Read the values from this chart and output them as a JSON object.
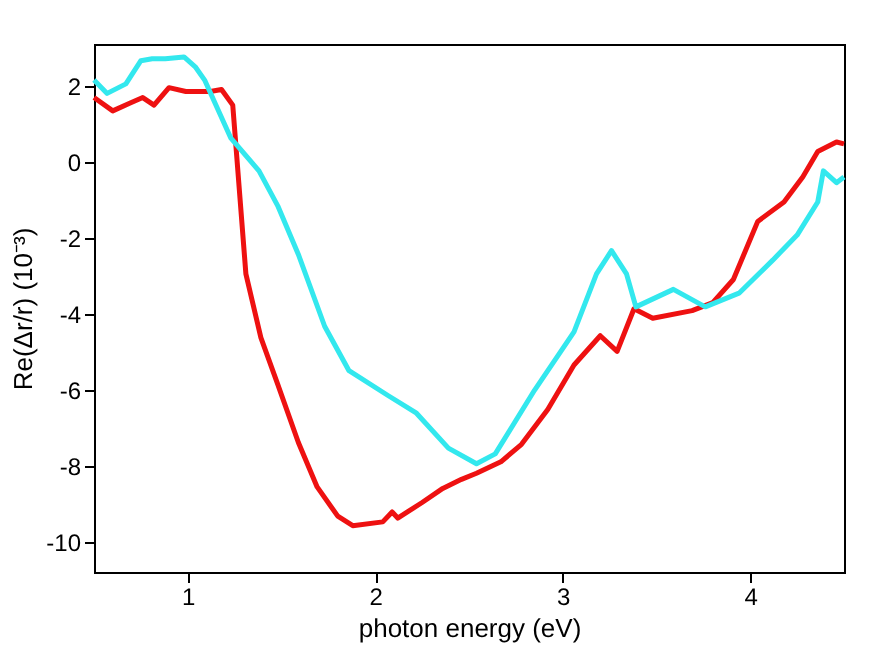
{
  "chart_data": {
    "type": "line",
    "xlabel": "photon energy (eV)",
    "ylabel": "Re(Δr/r) (10⁻³)",
    "xlim": [
      0.5,
      4.5
    ],
    "ylim": [
      -10.8,
      3.1
    ],
    "xticks": [
      1,
      2,
      3,
      4
    ],
    "yticks": [
      -10,
      -8,
      -6,
      -4,
      -2,
      0,
      2
    ],
    "grid": false,
    "marker": "none",
    "line_style": "solid",
    "series": [
      {
        "color": "#ee1111",
        "x": [
          0.5,
          0.6,
          0.69,
          0.76,
          0.82,
          0.9,
          0.99,
          1.12,
          1.18,
          1.24,
          1.31,
          1.39,
          1.48,
          1.59,
          1.69,
          1.8,
          1.88,
          2.04,
          2.09,
          2.12,
          2.25,
          2.36,
          2.46,
          2.54,
          2.67,
          2.78,
          2.92,
          3.06,
          3.2,
          3.29,
          3.38,
          3.48,
          3.69,
          3.8,
          3.91,
          4.04,
          4.18,
          4.28,
          4.36,
          4.46,
          4.5
        ],
        "values": [
          1.69,
          1.34,
          1.54,
          1.69,
          1.49,
          1.95,
          1.85,
          1.85,
          1.9,
          1.49,
          -2.95,
          -4.63,
          -5.86,
          -7.39,
          -8.56,
          -9.33,
          -9.58,
          -9.48,
          -9.22,
          -9.38,
          -8.97,
          -8.6,
          -8.36,
          -8.2,
          -7.9,
          -7.44,
          -6.52,
          -5.35,
          -4.58,
          -4.99,
          -3.87,
          -4.12,
          -3.92,
          -3.71,
          -3.1,
          -1.57,
          -1.06,
          -0.4,
          0.27,
          0.52,
          0.47
        ]
      },
      {
        "color": "#33e8ee",
        "x": [
          0.5,
          0.57,
          0.67,
          0.75,
          0.81,
          0.88,
          0.98,
          1.04,
          1.09,
          1.23,
          1.38,
          1.48,
          1.59,
          1.73,
          1.86,
          2.07,
          2.22,
          2.39,
          2.54,
          2.64,
          2.85,
          3.06,
          3.18,
          3.26,
          3.34,
          3.39,
          3.59,
          3.76,
          3.94,
          4.12,
          4.25,
          4.36,
          4.39,
          4.46,
          4.5
        ],
        "values": [
          2.15,
          1.8,
          2.05,
          2.66,
          2.71,
          2.71,
          2.76,
          2.5,
          2.15,
          0.62,
          -0.24,
          -1.16,
          -2.44,
          -4.33,
          -5.5,
          -6.16,
          -6.62,
          -7.54,
          -7.95,
          -7.69,
          -6.01,
          -4.48,
          -2.95,
          -2.34,
          -2.95,
          -3.82,
          -3.36,
          -3.82,
          -3.46,
          -2.59,
          -1.93,
          -1.06,
          -0.24,
          -0.55,
          -0.4
        ]
      }
    ]
  }
}
